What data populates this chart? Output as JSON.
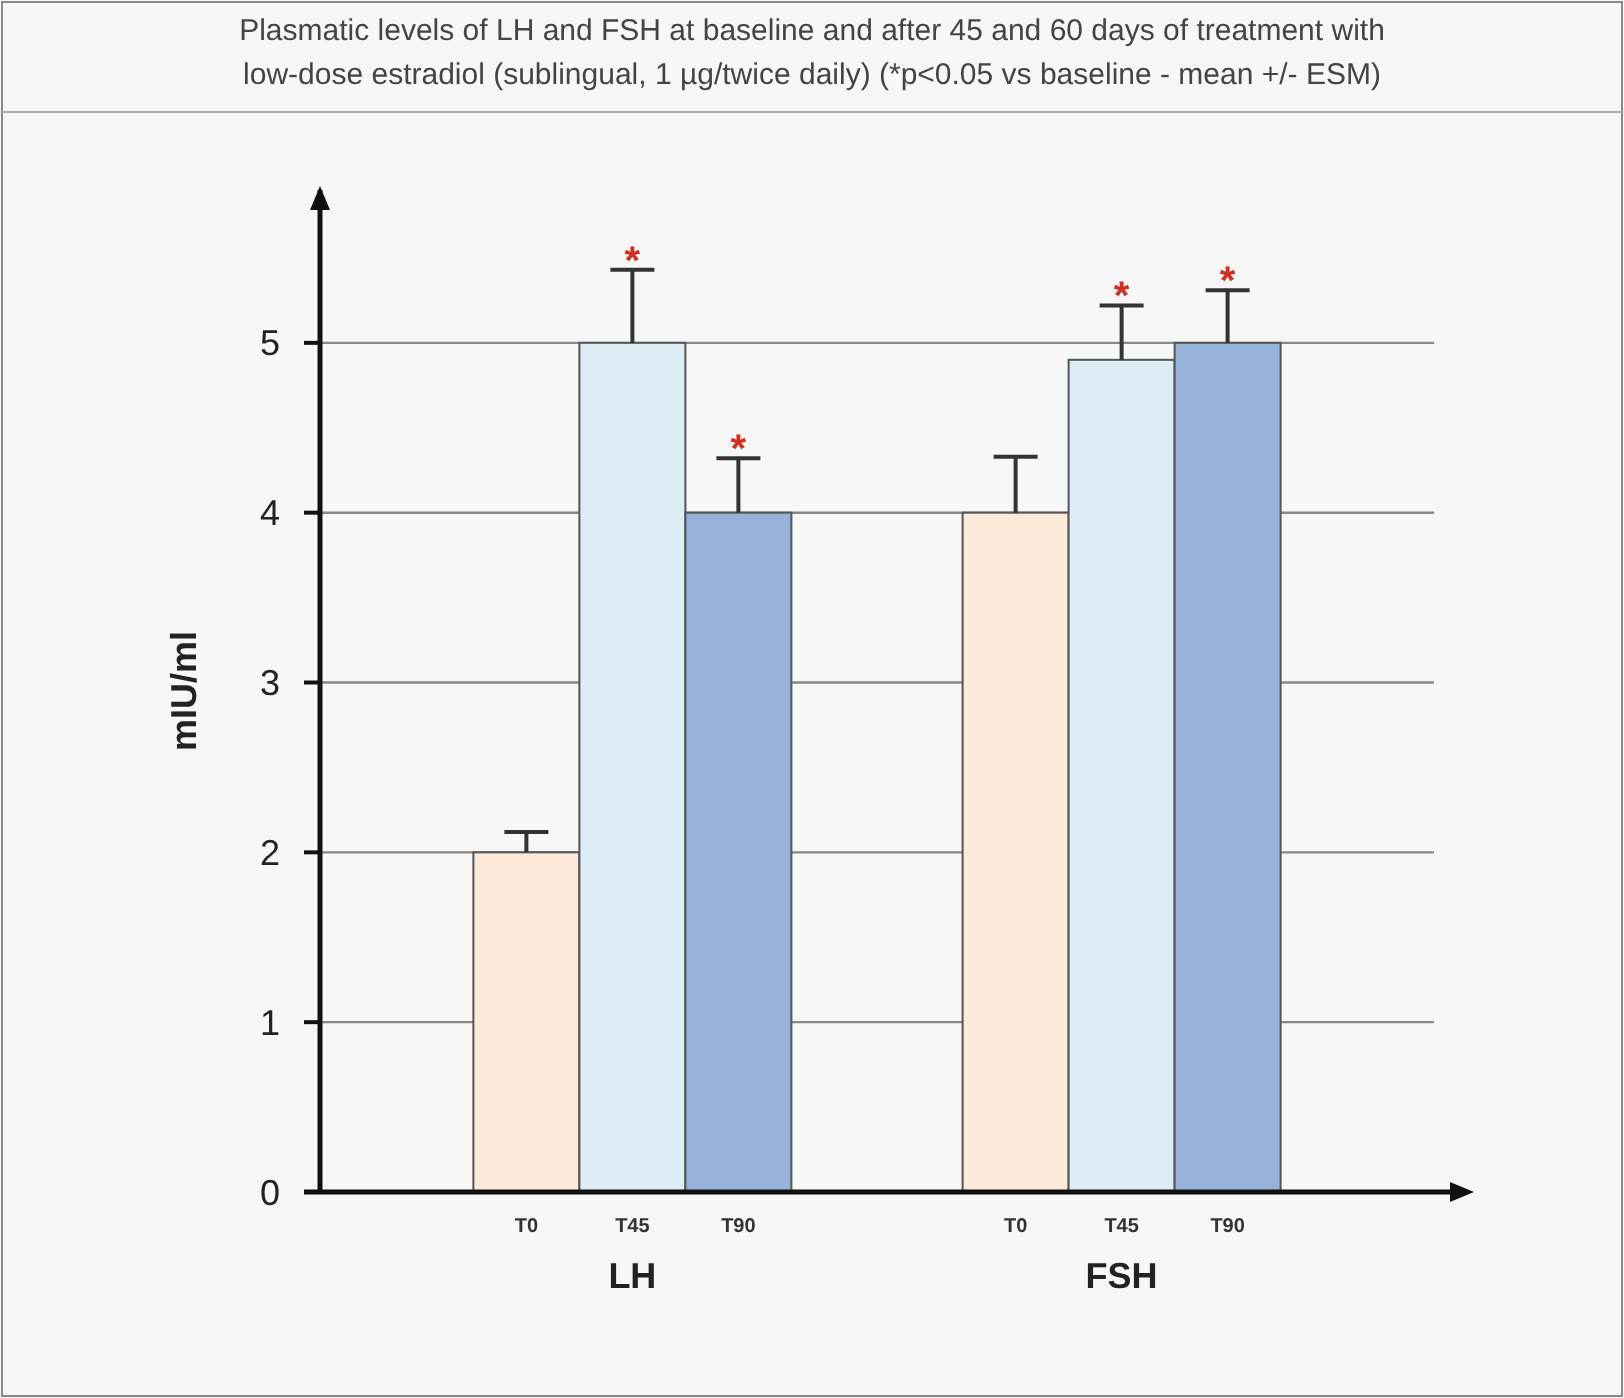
{
  "chart_data": {
    "type": "bar",
    "title": "Plasmatic levels of LH and FSH at baseline and after 45 and 60 days of treatment with low-dose estradiol (sublingual, 1 µg/twice daily) (*p<0.05 vs baseline - mean +/- ESM)",
    "ylabel": "mIU/ml",
    "categories": [
      "LH",
      "FSH"
    ],
    "series": [
      {
        "name": "T0",
        "color": "#fdeadb",
        "values": [
          2,
          4
        ],
        "errors": [
          [
            2,
            2.12
          ],
          [
            4,
            4.33
          ]
        ],
        "value_labels": [
          null,
          null
        ]
      },
      {
        "name": "T45",
        "color": "#dcedf6",
        "values": [
          5,
          4.9
        ],
        "errors": [
          [
            5,
            5.43
          ],
          [
            4.9,
            5.22
          ]
        ],
        "value_labels": [
          "*",
          "*"
        ]
      },
      {
        "name": "T90",
        "color": "#97b2d8",
        "values": [
          4,
          5
        ],
        "errors": [
          [
            4,
            4.32
          ],
          [
            5,
            5.31
          ]
        ],
        "value_labels": [
          "*",
          "*"
        ]
      }
    ],
    "ylim": [
      0,
      5.9
    ],
    "yticks": [
      0,
      1,
      2,
      3,
      4,
      5
    ],
    "grid": "y"
  }
}
